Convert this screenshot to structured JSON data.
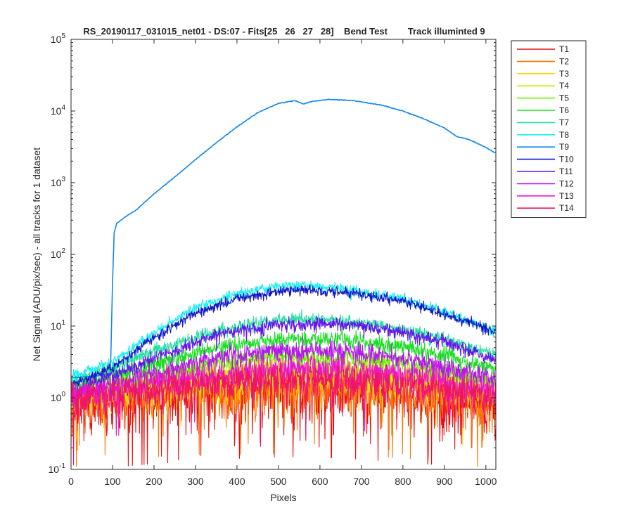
{
  "chart_data": {
    "type": "line",
    "title": "RS_20190117_031015_net01 - DS:07 - Fits[25   26   27   28]    Bend Test        Track illuminted 9",
    "xlabel": "Pixels",
    "ylabel": "Net Signal (ADU/pix/sec) - all tracks for 1 dataset",
    "xlim": [
      0,
      1024
    ],
    "ylim": [
      0.1,
      100000
    ],
    "yscale": "log",
    "grid": false,
    "legend_position": "outside-top-right",
    "x_ticks": [
      "0",
      "100",
      "200",
      "300",
      "400",
      "500",
      "600",
      "700",
      "800",
      "900",
      "1000"
    ],
    "y_ticks": [
      {
        "base": "10",
        "exp": "-1",
        "value": 0.1
      },
      {
        "base": "10",
        "exp": "0",
        "value": 1
      },
      {
        "base": "10",
        "exp": "1",
        "value": 10
      },
      {
        "base": "10",
        "exp": "2",
        "value": 100
      },
      {
        "base": "10",
        "exp": "3",
        "value": 1000
      },
      {
        "base": "10",
        "exp": "4",
        "value": 10000
      },
      {
        "base": "10",
        "exp": "5",
        "value": 100000
      }
    ],
    "series": [
      {
        "name": "T1",
        "color": "#e81010",
        "noise": 0.75,
        "profile": [
          [
            0,
            0.8
          ],
          [
            200,
            1.0
          ],
          [
            350,
            1.15
          ],
          [
            500,
            1.25
          ],
          [
            650,
            1.2
          ],
          [
            800,
            1.05
          ],
          [
            900,
            0.95
          ],
          [
            1023,
            0.8
          ]
        ]
      },
      {
        "name": "T2",
        "color": "#ff7a00",
        "noise": 0.65,
        "profile": [
          [
            0,
            0.9
          ],
          [
            200,
            1.15
          ],
          [
            350,
            1.3
          ],
          [
            500,
            1.4
          ],
          [
            650,
            1.35
          ],
          [
            800,
            1.2
          ],
          [
            900,
            1.05
          ],
          [
            1023,
            0.85
          ]
        ]
      },
      {
        "name": "T3",
        "color": "#ffd000",
        "noise": 0.5,
        "profile": [
          [
            0,
            1.0
          ],
          [
            200,
            1.4
          ],
          [
            350,
            1.75
          ],
          [
            500,
            2.0
          ],
          [
            650,
            1.95
          ],
          [
            800,
            1.7
          ],
          [
            900,
            1.45
          ],
          [
            1023,
            1.05
          ]
        ]
      },
      {
        "name": "T4",
        "color": "#c8f000",
        "noise": 0.4,
        "profile": [
          [
            0,
            1.1
          ],
          [
            200,
            1.6
          ],
          [
            350,
            2.2
          ],
          [
            500,
            2.6
          ],
          [
            650,
            2.5
          ],
          [
            800,
            2.1
          ],
          [
            900,
            1.75
          ],
          [
            1023,
            1.2
          ]
        ]
      },
      {
        "name": "T5",
        "color": "#6cf000",
        "noise": 0.32,
        "profile": [
          [
            0,
            1.2
          ],
          [
            200,
            2.0
          ],
          [
            350,
            3.0
          ],
          [
            500,
            3.8
          ],
          [
            650,
            3.7
          ],
          [
            800,
            3.0
          ],
          [
            900,
            2.4
          ],
          [
            1023,
            1.6
          ]
        ]
      },
      {
        "name": "T6",
        "color": "#18e020",
        "noise": 0.25,
        "profile": [
          [
            0,
            1.4
          ],
          [
            200,
            3.0
          ],
          [
            350,
            5.0
          ],
          [
            500,
            6.6
          ],
          [
            650,
            6.5
          ],
          [
            800,
            5.2
          ],
          [
            900,
            4.0
          ],
          [
            1023,
            2.5
          ]
        ]
      },
      {
        "name": "T7",
        "color": "#20e0a0",
        "noise": 0.2,
        "profile": [
          [
            0,
            1.6
          ],
          [
            200,
            4.5
          ],
          [
            350,
            8.5
          ],
          [
            500,
            12.5
          ],
          [
            650,
            12.0
          ],
          [
            800,
            9.0
          ],
          [
            900,
            6.5
          ],
          [
            1023,
            4.0
          ]
        ]
      },
      {
        "name": "T8",
        "color": "#18f0f0",
        "noise": 0.15,
        "profile": [
          [
            0,
            2.0
          ],
          [
            100,
            3.2
          ],
          [
            200,
            8.0
          ],
          [
            300,
            18.0
          ],
          [
            400,
            28.0
          ],
          [
            500,
            36.0
          ],
          [
            550,
            37.0
          ],
          [
            650,
            34.0
          ],
          [
            800,
            24.0
          ],
          [
            900,
            16.0
          ],
          [
            1023,
            8.5
          ]
        ]
      },
      {
        "name": "T9",
        "color": "#1488e8",
        "noise": 0.01,
        "profile": [
          [
            0,
            1.9
          ],
          [
            60,
            2.0
          ],
          [
            95,
            2.2
          ],
          [
            100,
            40.0
          ],
          [
            104,
            200.0
          ],
          [
            110,
            270.0
          ],
          [
            130,
            330.0
          ],
          [
            160,
            430.0
          ],
          [
            200,
            700.0
          ],
          [
            250,
            1200.0
          ],
          [
            300,
            2100.0
          ],
          [
            350,
            3600.0
          ],
          [
            400,
            6000.0
          ],
          [
            450,
            9500.0
          ],
          [
            500,
            12800.0
          ],
          [
            540,
            14000.0
          ],
          [
            560,
            12500.0
          ],
          [
            580,
            13600.0
          ],
          [
            620,
            14500.0
          ],
          [
            680,
            14000.0
          ],
          [
            750,
            12000.0
          ],
          [
            800,
            10000.0
          ],
          [
            850,
            7800.0
          ],
          [
            900,
            5800.0
          ],
          [
            930,
            4400.0
          ],
          [
            960,
            4000.0
          ],
          [
            1000,
            3100.0
          ],
          [
            1023,
            2600.0
          ]
        ]
      },
      {
        "name": "T10",
        "color": "#1414c8",
        "noise": 0.15,
        "profile": [
          [
            0,
            1.5
          ],
          [
            100,
            2.6
          ],
          [
            200,
            7.0
          ],
          [
            300,
            15.0
          ],
          [
            400,
            24.0
          ],
          [
            500,
            31.0
          ],
          [
            550,
            32.5
          ],
          [
            650,
            30.5
          ],
          [
            800,
            22.0
          ],
          [
            900,
            15.0
          ],
          [
            1023,
            8.5
          ]
        ]
      },
      {
        "name": "T11",
        "color": "#6414ec",
        "noise": 0.2,
        "profile": [
          [
            0,
            1.2
          ],
          [
            200,
            3.5
          ],
          [
            350,
            7.5
          ],
          [
            500,
            10.5
          ],
          [
            600,
            11.0
          ],
          [
            700,
            10.0
          ],
          [
            800,
            8.0
          ],
          [
            900,
            6.0
          ],
          [
            1023,
            3.3
          ]
        ]
      },
      {
        "name": "T12",
        "color": "#b814f0",
        "noise": 0.3,
        "profile": [
          [
            0,
            1.1
          ],
          [
            200,
            2.2
          ],
          [
            350,
            3.6
          ],
          [
            500,
            4.6
          ],
          [
            650,
            4.5
          ],
          [
            800,
            3.6
          ],
          [
            900,
            2.8
          ],
          [
            1023,
            1.8
          ]
        ]
      },
      {
        "name": "T13",
        "color": "#f014d8",
        "noise": 0.42,
        "profile": [
          [
            0,
            1.05
          ],
          [
            200,
            1.6
          ],
          [
            350,
            2.1
          ],
          [
            500,
            2.6
          ],
          [
            650,
            2.55
          ],
          [
            800,
            2.1
          ],
          [
            900,
            1.7
          ],
          [
            1023,
            1.2
          ]
        ]
      },
      {
        "name": "T14",
        "color": "#f01464",
        "noise": 0.55,
        "profile": [
          [
            0,
            0.95
          ],
          [
            200,
            1.3
          ],
          [
            350,
            1.6
          ],
          [
            500,
            1.8
          ],
          [
            650,
            1.75
          ],
          [
            800,
            1.5
          ],
          [
            900,
            1.3
          ],
          [
            1023,
            1.0
          ]
        ]
      }
    ]
  }
}
